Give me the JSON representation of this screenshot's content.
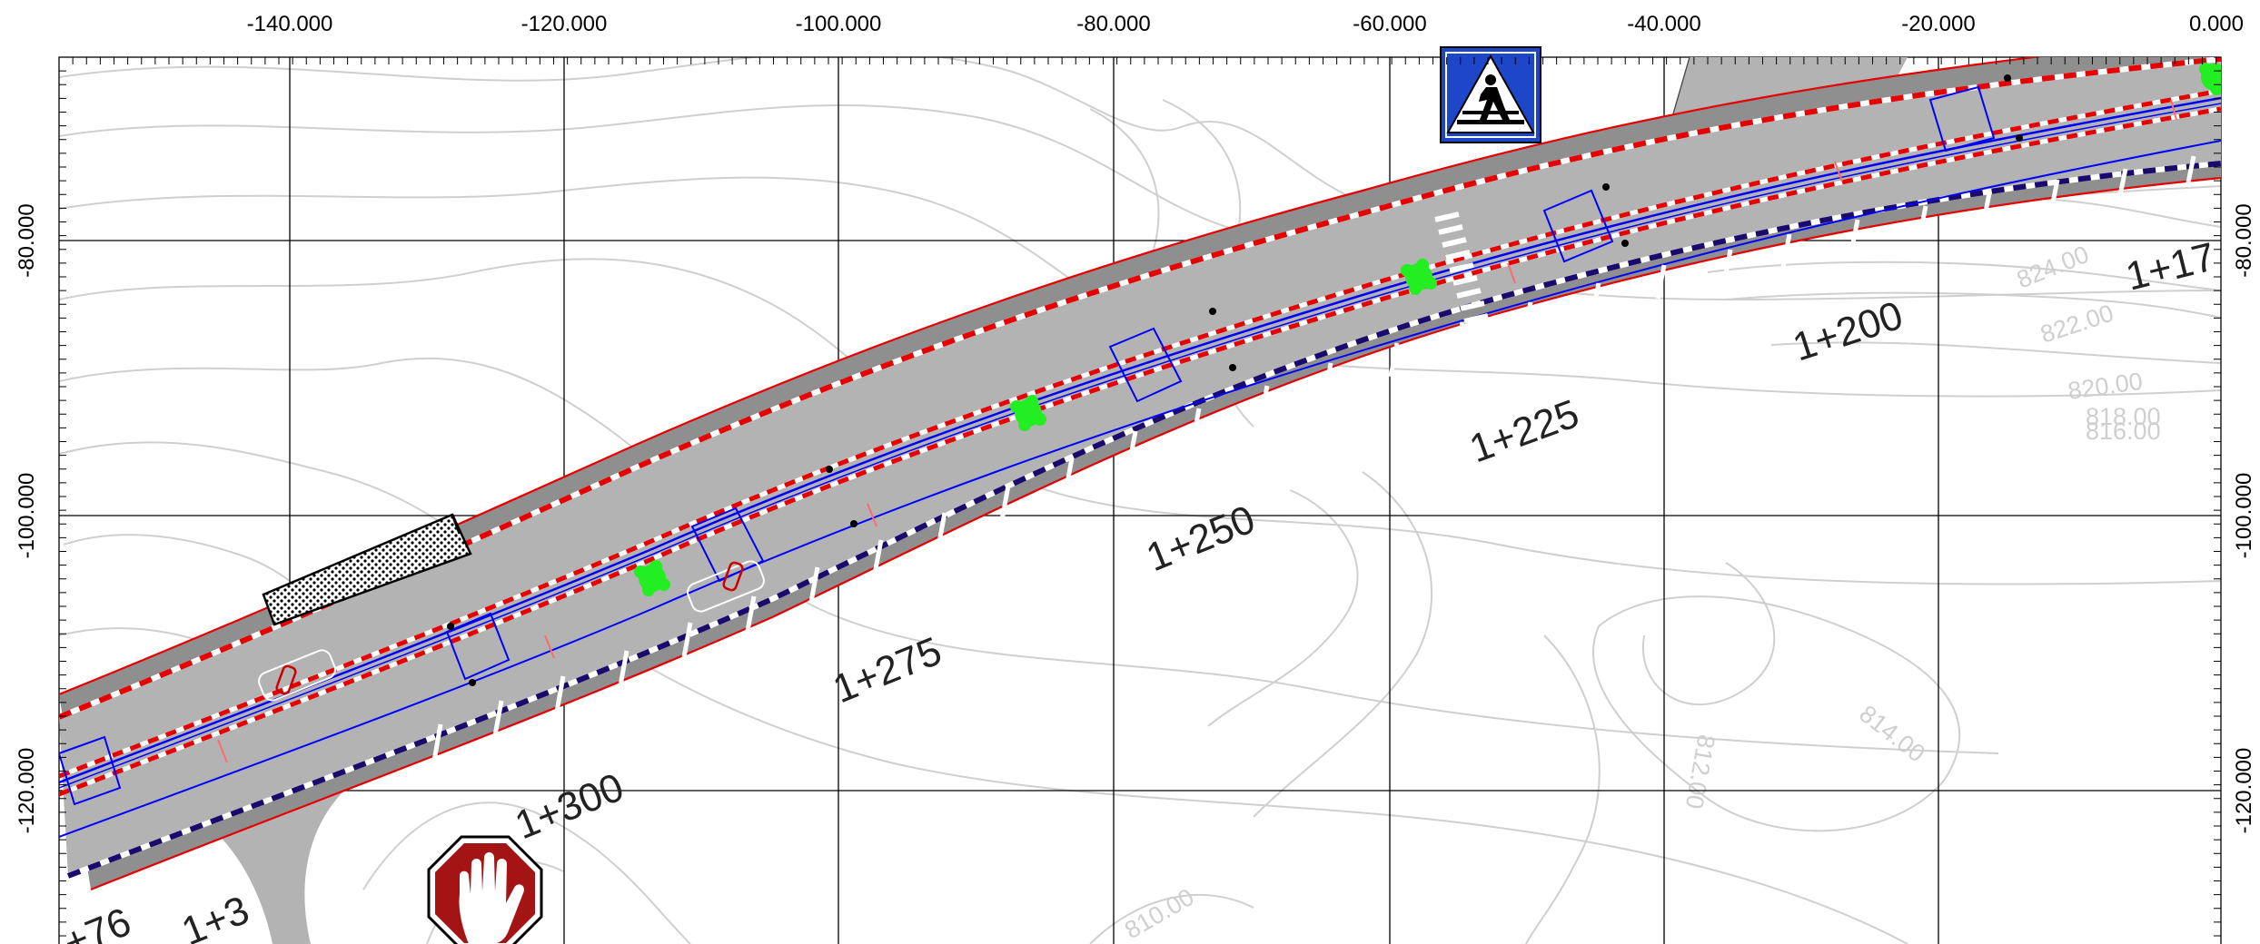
{
  "x_axis": {
    "labels": [
      "-140.000",
      "-120.000",
      "-100.000",
      "-80.000",
      "-60.000",
      "-40.000",
      "-20.000",
      "0.000"
    ]
  },
  "y_axis": {
    "left_labels": [
      "-80.000",
      "-100.000",
      "-120.000"
    ],
    "right_labels": [
      "-80.000",
      "-100.000",
      "-120.000"
    ]
  },
  "stations": [
    "1+300",
    "1+275",
    "1+250",
    "1+225",
    "1+200",
    "1+17",
    "1+3",
    "+76"
  ],
  "contours": [
    "824.00",
    "822.00",
    "820.00",
    "818.00",
    "816.00",
    "814.00",
    "812.00",
    "810.00"
  ],
  "signs": {
    "pedestrian_crossing_icon": "pedestrian-crossing-sign",
    "stop_hand_icon": "stop-hand-sign"
  },
  "colors": {
    "grid": "#000000",
    "contour": "#cfcfcf",
    "road_surface": "#b3b3b3",
    "road_verge": "#8f8f8f",
    "edge_line": "#e60000",
    "centerline": "#0000ff",
    "marker": "#22ee22",
    "sign_blue": "#1e46c8",
    "sign_red": "#a51414"
  }
}
